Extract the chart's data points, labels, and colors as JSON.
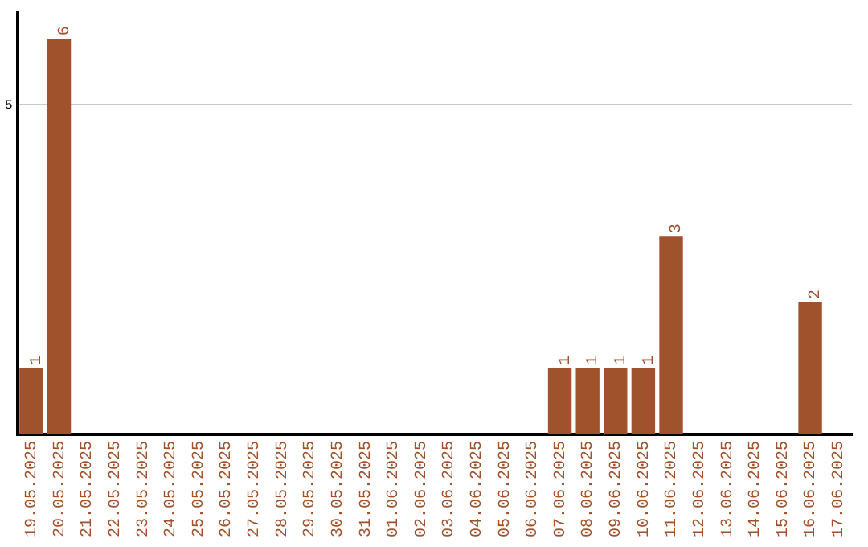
{
  "chart_data": {
    "type": "bar",
    "categories": [
      "19.05.2025",
      "20.05.2025",
      "21.05.2025",
      "22.05.2025",
      "23.05.2025",
      "24.05.2025",
      "25.05.2025",
      "26.05.2025",
      "27.05.2025",
      "28.05.2025",
      "29.05.2025",
      "30.05.2025",
      "31.05.2025",
      "01.06.2025",
      "02.06.2025",
      "03.06.2025",
      "04.06.2025",
      "05.06.2025",
      "06.06.2025",
      "07.06.2025",
      "08.06.2025",
      "09.06.2025",
      "10.06.2025",
      "11.06.2025",
      "12.06.2025",
      "13.06.2025",
      "14.06.2025",
      "15.06.2025",
      "16.06.2025",
      "17.06.2025"
    ],
    "values": [
      1,
      6,
      0,
      0,
      0,
      0,
      0,
      0,
      0,
      0,
      0,
      0,
      0,
      0,
      0,
      0,
      0,
      0,
      0,
      1,
      1,
      1,
      1,
      3,
      0,
      0,
      0,
      0,
      2,
      0
    ],
    "value_labels": [
      "1",
      "6",
      null,
      null,
      null,
      null,
      null,
      null,
      null,
      null,
      null,
      null,
      null,
      null,
      null,
      null,
      null,
      null,
      null,
      "1",
      "1",
      "1",
      "1",
      "3",
      null,
      null,
      null,
      null,
      "2",
      null
    ],
    "color": "#a0522d",
    "ylim": [
      0,
      6.4
    ],
    "yticks": [
      5
    ],
    "grid": "y",
    "legend": false
  }
}
